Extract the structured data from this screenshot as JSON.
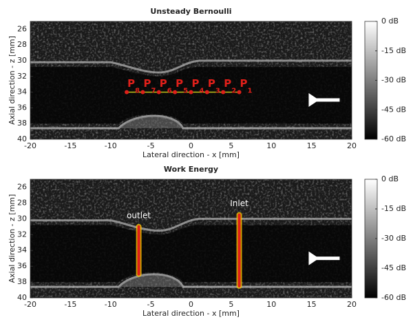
{
  "chart_data": [
    {
      "type": "image",
      "title": "Unsteady Bernoulli",
      "xlabel": "Lateral direction - x [mm]",
      "ylabel": "Axial direction - z [mm]",
      "xlim": [
        -20,
        20
      ],
      "ylim": [
        25,
        40
      ],
      "xticks": [
        -20,
        -15,
        -10,
        -5,
        0,
        5,
        10,
        15,
        20
      ],
      "yticks": [
        26,
        28,
        30,
        32,
        34,
        36,
        38,
        40
      ],
      "colorbar": {
        "clim": [
          -60,
          0
        ],
        "ticks": [
          {
            "value": 0,
            "label": "0 dB"
          },
          {
            "value": -15,
            "label": "-15 dB"
          },
          {
            "value": -30,
            "label": "-30 dB"
          },
          {
            "value": -45,
            "label": "-45 dB"
          },
          {
            "value": -60,
            "label": "-60 dB"
          }
        ]
      },
      "points": [
        {
          "label": "P",
          "subscript": "8",
          "x": -8,
          "z": 34
        },
        {
          "label": "P",
          "subscript": "7",
          "x": -6,
          "z": 34
        },
        {
          "label": "P",
          "subscript": "6",
          "x": -4,
          "z": 34
        },
        {
          "label": "P",
          "subscript": "5",
          "x": -2,
          "z": 34
        },
        {
          "label": "P",
          "subscript": "4",
          "x": 0,
          "z": 34
        },
        {
          "label": "P",
          "subscript": "3",
          "x": 2,
          "z": 34
        },
        {
          "label": "P",
          "subscript": "2",
          "x": 4,
          "z": 34
        },
        {
          "label": "P",
          "subscript": "1",
          "x": 6,
          "z": 34
        }
      ]
    },
    {
      "type": "image",
      "title": "Work Energy",
      "xlabel": "Lateral direction - x [mm]",
      "ylabel": "Axial direction - z [mm]",
      "xlim": [
        -20,
        20
      ],
      "ylim": [
        25,
        40
      ],
      "xticks": [
        -20,
        -15,
        -10,
        -5,
        0,
        5,
        10,
        15,
        20
      ],
      "yticks": [
        26,
        28,
        30,
        32,
        34,
        36,
        38,
        40
      ],
      "colorbar": {
        "clim": [
          -60,
          0
        ],
        "ticks": [
          {
            "value": 0,
            "label": "0 dB"
          },
          {
            "value": -15,
            "label": "-15 dB"
          },
          {
            "value": -30,
            "label": "-30 dB"
          },
          {
            "value": -45,
            "label": "-45 dB"
          },
          {
            "value": -60,
            "label": "-60 dB"
          }
        ]
      },
      "lines": [
        {
          "label": "outlet",
          "x": -6.5,
          "z": [
            31,
            37
          ]
        },
        {
          "label": "Inlet",
          "x": 6,
          "z": [
            29.5,
            38.5
          ]
        }
      ]
    }
  ]
}
